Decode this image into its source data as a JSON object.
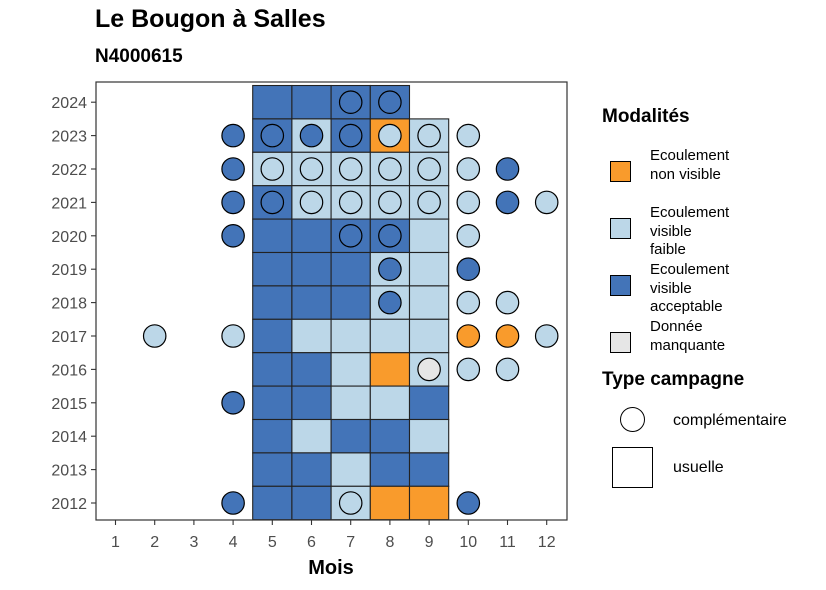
{
  "chart_data": {
    "type": "heatmap",
    "title": "Le Bougon à Salles",
    "subtitle": "N4000615",
    "xlabel": "Mois",
    "ylabel": "",
    "x_ticks": [
      "1",
      "2",
      "3",
      "4",
      "5",
      "6",
      "7",
      "8",
      "9",
      "10",
      "11",
      "12"
    ],
    "y_ticks": [
      "2024",
      "2023",
      "2022",
      "2021",
      "2020",
      "2019",
      "2018",
      "2017",
      "2016",
      "2015",
      "2014",
      "2013",
      "2012"
    ],
    "colors": {
      "non_visible": "#f99b2c",
      "faible": "#bcd7e8",
      "acceptable": "#4374b8",
      "manquante": "#e6e6e6"
    },
    "legend_modalites": {
      "title": "Modalités",
      "items": [
        {
          "key": "non_visible",
          "label": "Ecoulement\nnon visible"
        },
        {
          "key": "faible",
          "label": "Ecoulement\nvisible\nfaible"
        },
        {
          "key": "acceptable",
          "label": "Ecoulement\nvisible\nacceptable"
        },
        {
          "key": "manquante",
          "label": "Donnée\nmanquante"
        }
      ]
    },
    "legend_type": {
      "title": "Type campagne",
      "items": [
        {
          "shape": "circle",
          "label": "complémentaire"
        },
        {
          "shape": "square",
          "label": "usuelle"
        }
      ]
    },
    "usuelle": [
      {
        "year": 2024,
        "months": [
          "acceptable",
          "acceptable",
          "acceptable",
          "acceptable"
        ]
      },
      {
        "year": 2023,
        "months": [
          "acceptable",
          "faible",
          "acceptable",
          "non_visible",
          "faible"
        ]
      },
      {
        "year": 2022,
        "months": [
          "faible",
          "faible",
          "faible",
          "faible",
          "faible"
        ]
      },
      {
        "year": 2021,
        "months": [
          "acceptable",
          "faible",
          "faible",
          "faible",
          "faible"
        ]
      },
      {
        "year": 2020,
        "months": [
          "acceptable",
          "acceptable",
          "acceptable",
          "acceptable",
          "faible"
        ]
      },
      {
        "year": 2019,
        "months": [
          "acceptable",
          "acceptable",
          "acceptable",
          "faible",
          "faible"
        ]
      },
      {
        "year": 2018,
        "months": [
          "acceptable",
          "acceptable",
          "acceptable",
          "faible",
          "faible"
        ]
      },
      {
        "year": 2017,
        "months": [
          "acceptable",
          "faible",
          "faible",
          "faible",
          "faible"
        ]
      },
      {
        "year": 2016,
        "months": [
          "acceptable",
          "acceptable",
          "faible",
          "non_visible",
          "faible"
        ]
      },
      {
        "year": 2015,
        "months": [
          "acceptable",
          "acceptable",
          "faible",
          "faible",
          "acceptable"
        ]
      },
      {
        "year": 2014,
        "months": [
          "acceptable",
          "faible",
          "acceptable",
          "acceptable",
          "faible"
        ]
      },
      {
        "year": 2013,
        "months": [
          "acceptable",
          "acceptable",
          "faible",
          "acceptable",
          "acceptable"
        ]
      },
      {
        "year": 2012,
        "months": [
          "acceptable",
          "acceptable",
          "faible",
          "non_visible",
          "non_visible"
        ]
      }
    ],
    "usuelle_start_month": 5,
    "complementaire": [
      {
        "year": 2024,
        "month": 7,
        "value": "acceptable"
      },
      {
        "year": 2024,
        "month": 8,
        "value": "acceptable"
      },
      {
        "year": 2023,
        "month": 4,
        "value": "acceptable"
      },
      {
        "year": 2023,
        "month": 5,
        "value": "acceptable"
      },
      {
        "year": 2023,
        "month": 6,
        "value": "acceptable"
      },
      {
        "year": 2023,
        "month": 7,
        "value": "acceptable"
      },
      {
        "year": 2023,
        "month": 8,
        "value": "faible"
      },
      {
        "year": 2023,
        "month": 9,
        "value": "faible"
      },
      {
        "year": 2023,
        "month": 10,
        "value": "faible"
      },
      {
        "year": 2022,
        "month": 4,
        "value": "acceptable"
      },
      {
        "year": 2022,
        "month": 5,
        "value": "faible"
      },
      {
        "year": 2022,
        "month": 6,
        "value": "faible"
      },
      {
        "year": 2022,
        "month": 7,
        "value": "faible"
      },
      {
        "year": 2022,
        "month": 8,
        "value": "faible"
      },
      {
        "year": 2022,
        "month": 9,
        "value": "faible"
      },
      {
        "year": 2022,
        "month": 10,
        "value": "faible"
      },
      {
        "year": 2022,
        "month": 11,
        "value": "acceptable"
      },
      {
        "year": 2021,
        "month": 4,
        "value": "acceptable"
      },
      {
        "year": 2021,
        "month": 5,
        "value": "acceptable"
      },
      {
        "year": 2021,
        "month": 6,
        "value": "faible"
      },
      {
        "year": 2021,
        "month": 7,
        "value": "faible"
      },
      {
        "year": 2021,
        "month": 8,
        "value": "faible"
      },
      {
        "year": 2021,
        "month": 9,
        "value": "faible"
      },
      {
        "year": 2021,
        "month": 10,
        "value": "faible"
      },
      {
        "year": 2021,
        "month": 11,
        "value": "acceptable"
      },
      {
        "year": 2021,
        "month": 12,
        "value": "faible"
      },
      {
        "year": 2020,
        "month": 4,
        "value": "acceptable"
      },
      {
        "year": 2020,
        "month": 7,
        "value": "acceptable"
      },
      {
        "year": 2020,
        "month": 8,
        "value": "acceptable"
      },
      {
        "year": 2020,
        "month": 10,
        "value": "faible"
      },
      {
        "year": 2019,
        "month": 8,
        "value": "acceptable"
      },
      {
        "year": 2019,
        "month": 10,
        "value": "acceptable"
      },
      {
        "year": 2018,
        "month": 8,
        "value": "acceptable"
      },
      {
        "year": 2018,
        "month": 10,
        "value": "faible"
      },
      {
        "year": 2018,
        "month": 11,
        "value": "faible"
      },
      {
        "year": 2017,
        "month": 2,
        "value": "faible"
      },
      {
        "year": 2017,
        "month": 4,
        "value": "faible"
      },
      {
        "year": 2017,
        "month": 10,
        "value": "non_visible"
      },
      {
        "year": 2017,
        "month": 11,
        "value": "non_visible"
      },
      {
        "year": 2017,
        "month": 12,
        "value": "faible"
      },
      {
        "year": 2016,
        "month": 9,
        "value": "manquante"
      },
      {
        "year": 2016,
        "month": 10,
        "value": "faible"
      },
      {
        "year": 2016,
        "month": 11,
        "value": "faible"
      },
      {
        "year": 2015,
        "month": 4,
        "value": "acceptable"
      },
      {
        "year": 2012,
        "month": 4,
        "value": "acceptable"
      },
      {
        "year": 2012,
        "month": 7,
        "value": "faible"
      },
      {
        "year": 2012,
        "month": 10,
        "value": "acceptable"
      }
    ]
  }
}
